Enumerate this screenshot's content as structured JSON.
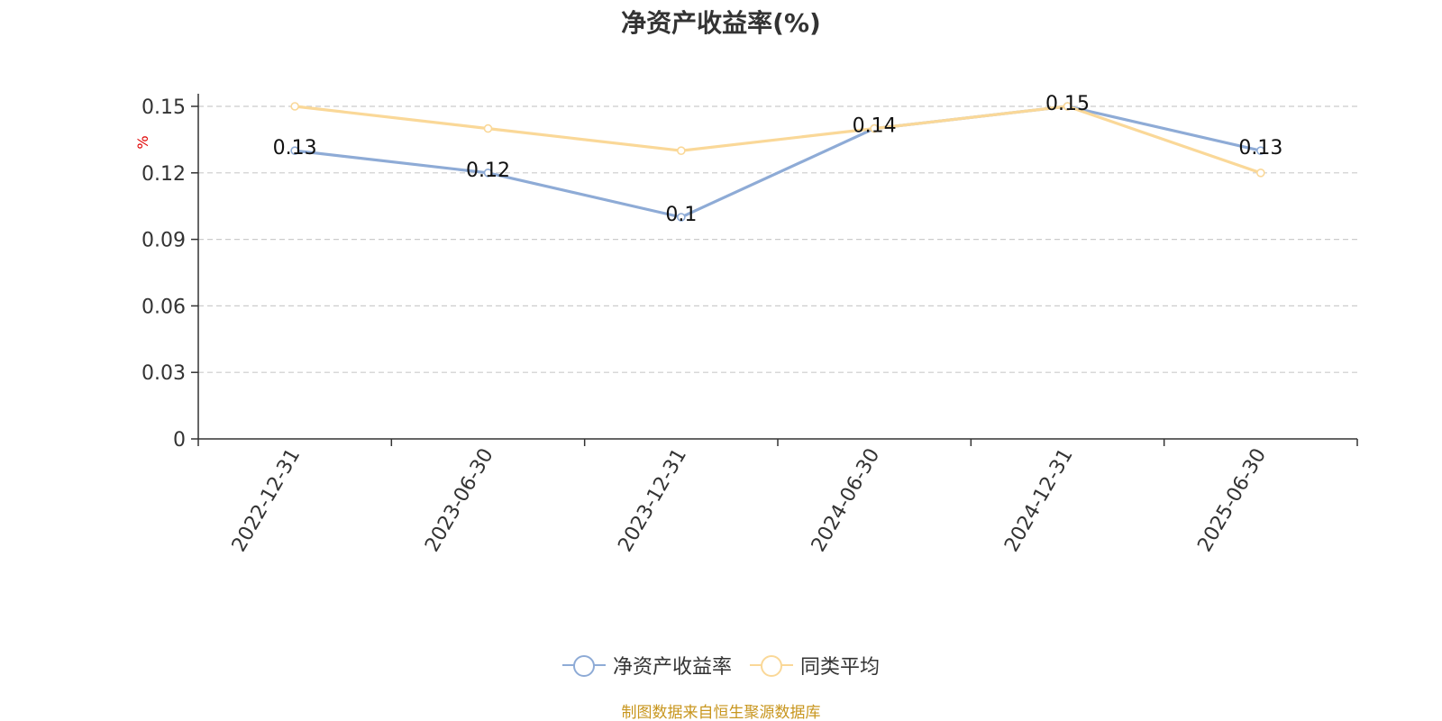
{
  "chart_data": {
    "type": "line",
    "title": "净资产收益率(%)",
    "ylabel": "%",
    "xlabel": "",
    "categories": [
      "2022-12-31",
      "2023-06-30",
      "2023-12-31",
      "2024-06-30",
      "2024-12-31",
      "2025-06-30"
    ],
    "ylim": [
      0,
      0.15
    ],
    "yticks": [
      "0",
      "0.03",
      "0.06",
      "0.09",
      "0.12",
      "0.15"
    ],
    "grid": true,
    "legend_position": "bottom",
    "series": [
      {
        "name": "净资产收益率",
        "values": [
          0.13,
          0.12,
          0.1,
          0.14,
          0.15,
          0.13
        ],
        "data_labels": [
          "0.13",
          "0.12",
          "0.1",
          "0.14",
          "0.15",
          "0.13"
        ],
        "color": "#8eabd6"
      },
      {
        "name": "同类平均",
        "values": [
          0.15,
          0.14,
          0.13,
          0.14,
          0.15,
          0.12
        ],
        "color": "#fad898"
      }
    ]
  },
  "source_note": "制图数据来自恒生聚源数据库",
  "colors": {
    "axis": "#333333",
    "grid": "#cccccc",
    "ylabel": "#e00000",
    "source": "#c8961e"
  }
}
